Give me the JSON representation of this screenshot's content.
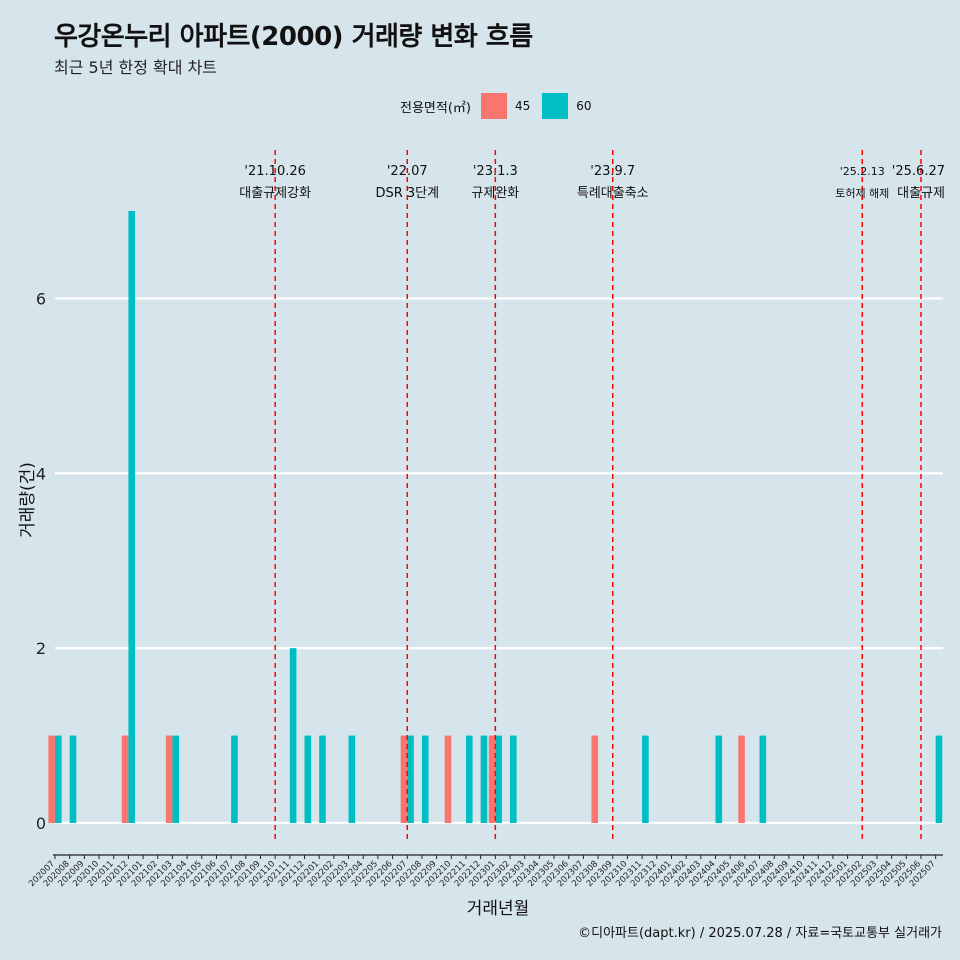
{
  "title": "우강온누리 아파트(2000) 거래량 변화 흐름",
  "subtitle": "최근 5년 한정 확대 차트",
  "caption": "©디아파트(dapt.kr) / 2025.07.28 / 자료=국토교통부 실거래가",
  "legend": {
    "title": "전용면적(㎡)",
    "items": [
      {
        "label": "45",
        "color": "#f8766d"
      },
      {
        "label": "60",
        "color": "#00bfc4"
      }
    ]
  },
  "chart_data": {
    "type": "bar",
    "xlabel": "거래년월",
    "ylabel": "거래량(건)",
    "ylim": [
      0,
      7
    ],
    "yticks": [
      0,
      2,
      4,
      6
    ],
    "grid": true,
    "legend_position": "top",
    "categories": [
      "202007",
      "202008",
      "202009",
      "202010",
      "202011",
      "202012",
      "202101",
      "202102",
      "202103",
      "202104",
      "202105",
      "202106",
      "202107",
      "202108",
      "202109",
      "202110",
      "202111",
      "202112",
      "202201",
      "202202",
      "202203",
      "202204",
      "202205",
      "202206",
      "202207",
      "202208",
      "202209",
      "202210",
      "202211",
      "202212",
      "202301",
      "202302",
      "202303",
      "202304",
      "202305",
      "202306",
      "202307",
      "202308",
      "202309",
      "202310",
      "202311",
      "202312",
      "202401",
      "202402",
      "202403",
      "202404",
      "202405",
      "202406",
      "202407",
      "202408",
      "202409",
      "202410",
      "202411",
      "202412",
      "202501",
      "202502",
      "202503",
      "202504",
      "202505",
      "202506",
      "202507"
    ],
    "series": [
      {
        "name": "45",
        "color": "#f8766d",
        "values": [
          1,
          0,
          0,
          0,
          0,
          1,
          0,
          0,
          1,
          0,
          0,
          0,
          0,
          0,
          0,
          0,
          0,
          0,
          0,
          0,
          0,
          0,
          0,
          0,
          1,
          0,
          0,
          1,
          0,
          0,
          1,
          0,
          0,
          0,
          0,
          0,
          0,
          1,
          0,
          0,
          0,
          0,
          0,
          0,
          0,
          0,
          0,
          1,
          0,
          0,
          0,
          0,
          0,
          0,
          0,
          0,
          0,
          0,
          0,
          0,
          0
        ]
      },
      {
        "name": "60",
        "color": "#00bfc4",
        "values": [
          1,
          1,
          0,
          0,
          0,
          7,
          0,
          0,
          1,
          0,
          0,
          0,
          1,
          0,
          0,
          0,
          2,
          1,
          1,
          0,
          1,
          0,
          0,
          0,
          1,
          1,
          0,
          0,
          1,
          1,
          1,
          1,
          0,
          0,
          0,
          0,
          0,
          0,
          0,
          0,
          1,
          0,
          0,
          0,
          0,
          1,
          0,
          0,
          1,
          0,
          0,
          0,
          0,
          0,
          0,
          0,
          0,
          0,
          0,
          0,
          1
        ]
      }
    ],
    "annotations": [
      {
        "category": "202110",
        "date": "'21.10.26",
        "label": "대출규제강화"
      },
      {
        "category": "202207",
        "date": "'22.07",
        "label": "DSR 3단계"
      },
      {
        "category": "202301",
        "date": "'23.1.3",
        "label": "규제완화"
      },
      {
        "category": "202309",
        "date": "'23.9.7",
        "label": "특례대출축소"
      },
      {
        "category": "202502",
        "date": "'25.2.13",
        "label": "토허제 해제"
      },
      {
        "category": "202506",
        "date": "'25.6.27",
        "label": "대출규제"
      }
    ]
  }
}
